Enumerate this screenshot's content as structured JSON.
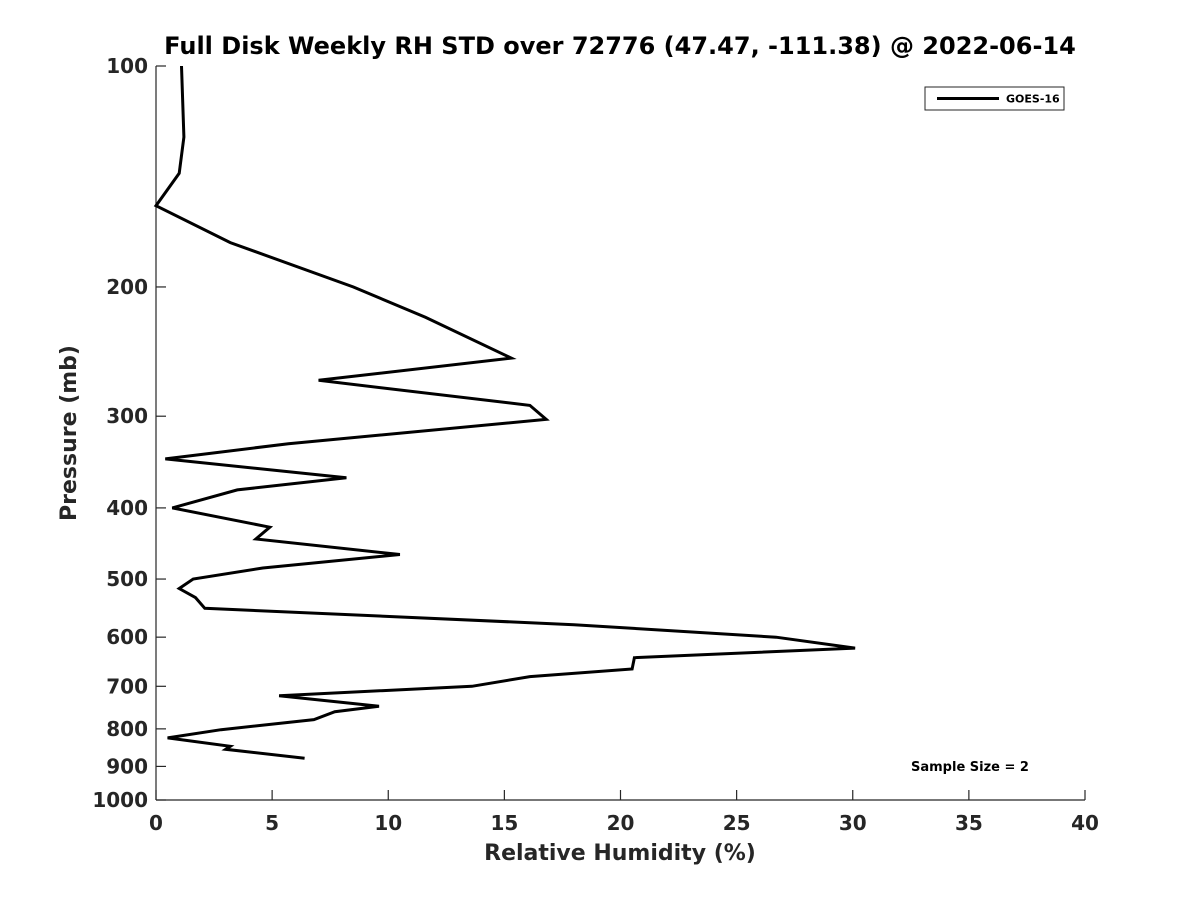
{
  "chart_data": {
    "type": "line",
    "title": "Full Disk Weekly RH STD over 72776 (47.47, -111.38) @ 2022-06-14",
    "xlabel": "Relative Humidity (%)",
    "ylabel": "Pressure (mb)",
    "xlim": [
      0,
      40
    ],
    "ylim": [
      100,
      1000
    ],
    "y_scale": "log",
    "y_reversed": true,
    "x_ticks": [
      0,
      5,
      10,
      15,
      20,
      25,
      30,
      35,
      40
    ],
    "x_tick_labels": [
      "0",
      "5",
      "10",
      "15",
      "20",
      "25",
      "30",
      "35",
      "40"
    ],
    "y_ticks": [
      100,
      200,
      300,
      400,
      500,
      600,
      700,
      800,
      900,
      1000
    ],
    "y_tick_labels": [
      "100",
      "200",
      "300",
      "400",
      "500",
      "600",
      "700",
      "800",
      "900",
      "1000"
    ],
    "grid": false,
    "legend_position": "top-right",
    "series": [
      {
        "name": "GOES-16",
        "color": "#000000",
        "x": [
          1.1,
          1.2,
          1.0,
          0.0,
          3.2,
          8.5,
          11.6,
          15.3,
          7.0,
          16.1,
          16.8,
          5.7,
          0.4,
          8.2,
          3.5,
          0.7,
          4.9,
          4.3,
          10.5,
          4.6,
          1.6,
          1.0,
          1.7,
          2.1,
          18.0,
          26.7,
          30.1,
          20.6,
          20.5,
          16.1,
          13.6,
          5.3,
          9.6,
          7.7,
          6.8,
          2.8,
          0.5,
          3.2,
          3.0,
          6.4
        ],
        "y": [
          100,
          125,
          140,
          155,
          174,
          200,
          220,
          250,
          268,
          290,
          303,
          327,
          343,
          364,
          378,
          400,
          425,
          441,
          463,
          483,
          500,
          515,
          530,
          548,
          577,
          600,
          621,
          640,
          663,
          679,
          700,
          721,
          745,
          758,
          777,
          802,
          823,
          845,
          853,
          877
        ]
      }
    ],
    "annotations": [
      "Sample Size = 2"
    ]
  }
}
